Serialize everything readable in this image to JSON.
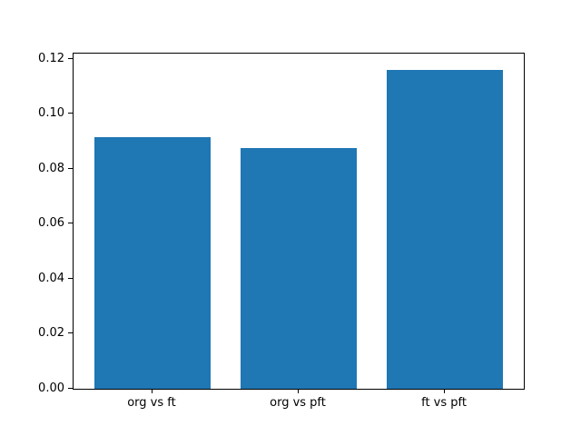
{
  "chart_data": {
    "type": "bar",
    "categories": [
      "org vs ft",
      "org vs pft",
      "ft vs pft"
    ],
    "values": [
      0.0915,
      0.0877,
      0.1161
    ],
    "title": "",
    "xlabel": "",
    "ylabel": "",
    "ylim": [
      0,
      0.1219
    ],
    "yticks": [
      0.0,
      0.02,
      0.04,
      0.06,
      0.08,
      0.1,
      0.12
    ],
    "ytick_labels": [
      "0.00",
      "0.02",
      "0.04",
      "0.06",
      "0.08",
      "0.10",
      "0.12"
    ],
    "bar_color": "#1f77b4",
    "bar_width_fraction": 0.8,
    "x_margin_fraction": 0.05,
    "grid": false,
    "legend": null
  },
  "figure": {
    "background": "#ffffff",
    "spine_color": "#000000",
    "tick_color": "#000000",
    "label_color": "#000000"
  }
}
